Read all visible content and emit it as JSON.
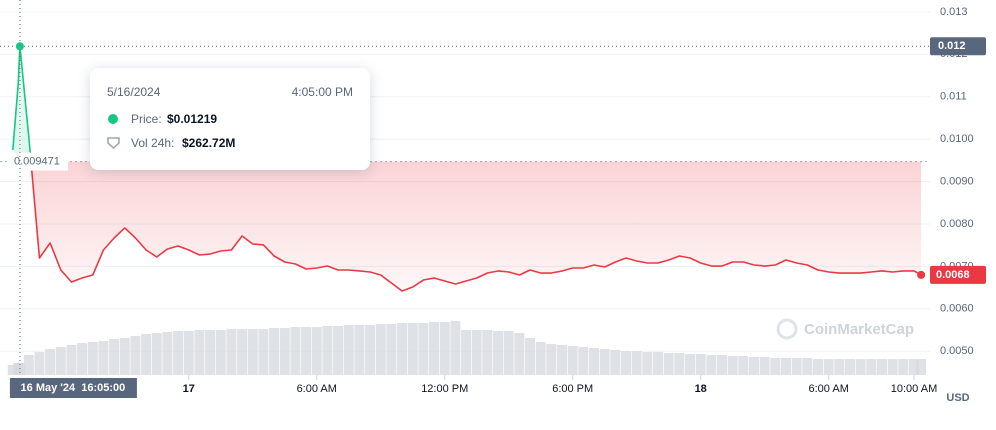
{
  "chart_data": {
    "type": "line",
    "xlim": [
      "2024-05-16T15:09",
      "2024-05-18T10:45"
    ],
    "ylim": [
      0.00444,
      0.01328
    ],
    "yticks": [
      {
        "value": 0.005,
        "label": "0.0050"
      },
      {
        "value": 0.006,
        "label": "0.0060"
      },
      {
        "value": 0.007,
        "label": "0.0070"
      },
      {
        "value": 0.008,
        "label": "0.0080"
      },
      {
        "value": 0.009,
        "label": "0.0090"
      },
      {
        "value": 0.01,
        "label": "0.0100"
      },
      0.011,
      0.012,
      0.013
    ],
    "xticks": [
      {
        "value": "2024-05-17T00:00",
        "label": "17"
      },
      {
        "value": "2024-05-17T06:00",
        "label": "6:00 AM"
      },
      {
        "value": "2024-05-17T12:00",
        "label": "12:00 PM"
      },
      {
        "value": "2024-05-17T18:00",
        "label": "6:00 PM"
      },
      {
        "value": "2024-05-18T00:00",
        "label": "18"
      },
      {
        "value": "2024-05-18T06:00",
        "label": "6:00 AM"
      },
      {
        "value": "2024-05-18T10:00",
        "label": "10:00 AM"
      }
    ],
    "grid": true,
    "currency": "USD",
    "watermark": "CoinMarketCap",
    "baseline": 0.009471,
    "up_color": "#16c784",
    "down_color": "#ea3943",
    "current_price": {
      "value": 0.0068,
      "label": "0.0068"
    },
    "crosshair": {
      "x": "2024-05-16T16:05",
      "x_label": "16 May '24  16:05:00",
      "y": 0.01219,
      "y_label": "0.012"
    },
    "tooltip": {
      "date": "5/16/2024",
      "time": "4:05:00 PM",
      "price_label": "Price:",
      "price": "$0.01219",
      "volume_label": "Vol 24h:",
      "volume": "$262.72M"
    },
    "x": [
      "2024-05-16T15:45",
      "2024-05-16T16:00",
      "2024-05-16T16:05",
      "2024-05-16T16:30",
      "2024-05-16T17:00",
      "2024-05-16T17:30",
      "2024-05-16T18:00",
      "2024-05-16T18:30",
      "2024-05-16T19:00",
      "2024-05-16T19:30",
      "2024-05-16T20:00",
      "2024-05-16T20:30",
      "2024-05-16T21:00",
      "2024-05-16T21:30",
      "2024-05-16T22:00",
      "2024-05-16T22:30",
      "2024-05-16T23:00",
      "2024-05-16T23:30",
      "2024-05-17T00:00",
      "2024-05-17T00:30",
      "2024-05-17T01:00",
      "2024-05-17T01:30",
      "2024-05-17T02:00",
      "2024-05-17T02:30",
      "2024-05-17T03:00",
      "2024-05-17T03:30",
      "2024-05-17T04:00",
      "2024-05-17T04:30",
      "2024-05-17T05:00",
      "2024-05-17T05:30",
      "2024-05-17T06:00",
      "2024-05-17T06:30",
      "2024-05-17T07:00",
      "2024-05-17T07:30",
      "2024-05-17T08:00",
      "2024-05-17T08:30",
      "2024-05-17T09:00",
      "2024-05-17T09:30",
      "2024-05-17T10:00",
      "2024-05-17T10:30",
      "2024-05-17T11:00",
      "2024-05-17T11:30",
      "2024-05-17T12:00",
      "2024-05-17T12:30",
      "2024-05-17T13:00",
      "2024-05-17T13:30",
      "2024-05-17T14:00",
      "2024-05-17T14:30",
      "2024-05-17T15:00",
      "2024-05-17T15:30",
      "2024-05-17T16:00",
      "2024-05-17T16:30",
      "2024-05-17T17:00",
      "2024-05-17T17:30",
      "2024-05-17T18:00",
      "2024-05-17T18:30",
      "2024-05-17T19:00",
      "2024-05-17T19:30",
      "2024-05-17T20:00",
      "2024-05-17T20:30",
      "2024-05-17T21:00",
      "2024-05-17T21:30",
      "2024-05-17T22:00",
      "2024-05-17T22:30",
      "2024-05-17T23:00",
      "2024-05-17T23:30",
      "2024-05-18T00:00",
      "2024-05-18T00:30",
      "2024-05-18T01:00",
      "2024-05-18T01:30",
      "2024-05-18T02:00",
      "2024-05-18T02:30",
      "2024-05-18T03:00",
      "2024-05-18T03:30",
      "2024-05-18T04:00",
      "2024-05-18T04:30",
      "2024-05-18T05:00",
      "2024-05-18T05:30",
      "2024-05-18T06:00",
      "2024-05-18T06:30",
      "2024-05-18T07:00",
      "2024-05-18T07:30",
      "2024-05-18T08:00",
      "2024-05-18T08:30",
      "2024-05-18T09:00",
      "2024-05-18T09:30",
      "2024-05-18T10:00",
      "2024-05-18T10:20"
    ],
    "price": {
      "values": [
        0.009745,
        0.011278,
        0.01219,
        0.010052,
        0.007198,
        0.007552,
        0.006915,
        0.006632,
        0.006726,
        0.006797,
        0.007387,
        0.00767,
        0.007906,
        0.00767,
        0.007387,
        0.007222,
        0.00741,
        0.007481,
        0.007387,
        0.007269,
        0.007292,
        0.007363,
        0.007387,
        0.007717,
        0.007528,
        0.007505,
        0.007245,
        0.007104,
        0.007057,
        0.006939,
        0.006962,
        0.007009,
        0.006915,
        0.006915,
        0.006892,
        0.006868,
        0.006797,
        0.006608,
        0.00642,
        0.006514,
        0.006679,
        0.006726,
        0.006656,
        0.006585,
        0.006656,
        0.006726,
        0.006844,
        0.006892,
        0.006868,
        0.006797,
        0.006915,
        0.006844,
        0.006844,
        0.006892,
        0.006962,
        0.006962,
        0.007033,
        0.006986,
        0.007104,
        0.007198,
        0.007127,
        0.00708,
        0.00708,
        0.007151,
        0.007245,
        0.007198,
        0.00708,
        0.007009,
        0.007009,
        0.007104,
        0.007104,
        0.007033,
        0.007009,
        0.007033,
        0.007151,
        0.00708,
        0.007033,
        0.006915,
        0.006868,
        0.006844,
        0.006844,
        0.006844,
        0.006868,
        0.006892,
        0.006868,
        0.006892,
        0.006892,
        0.0068
      ]
    },
    "volume": {
      "color": "#d6d9de",
      "values": [
        219000000,
        263000000,
        262720000,
        438000000,
        504000000,
        569000000,
        613000000,
        657000000,
        701000000,
        723000000,
        745000000,
        788000000,
        810000000,
        854000000,
        898000000,
        920000000,
        942000000,
        964000000,
        964000000,
        986000000,
        986000000,
        986000000,
        1007000000,
        1007000000,
        1007000000,
        1007000000,
        1029000000,
        1029000000,
        1051000000,
        1051000000,
        1051000000,
        1073000000,
        1073000000,
        1095000000,
        1095000000,
        1095000000,
        1117000000,
        1117000000,
        1139000000,
        1139000000,
        1139000000,
        1161000000,
        1161000000,
        1183000000,
        986000000,
        986000000,
        986000000,
        964000000,
        964000000,
        920000000,
        810000000,
        723000000,
        679000000,
        657000000,
        635000000,
        613000000,
        591000000,
        569000000,
        548000000,
        526000000,
        526000000,
        504000000,
        504000000,
        482000000,
        482000000,
        460000000,
        460000000,
        438000000,
        438000000,
        416000000,
        416000000,
        394000000,
        394000000,
        372000000,
        372000000,
        372000000,
        372000000,
        350000000,
        350000000,
        350000000,
        350000000,
        350000000,
        350000000,
        350000000,
        350000000,
        350000000,
        350000000,
        350000000
      ]
    }
  }
}
